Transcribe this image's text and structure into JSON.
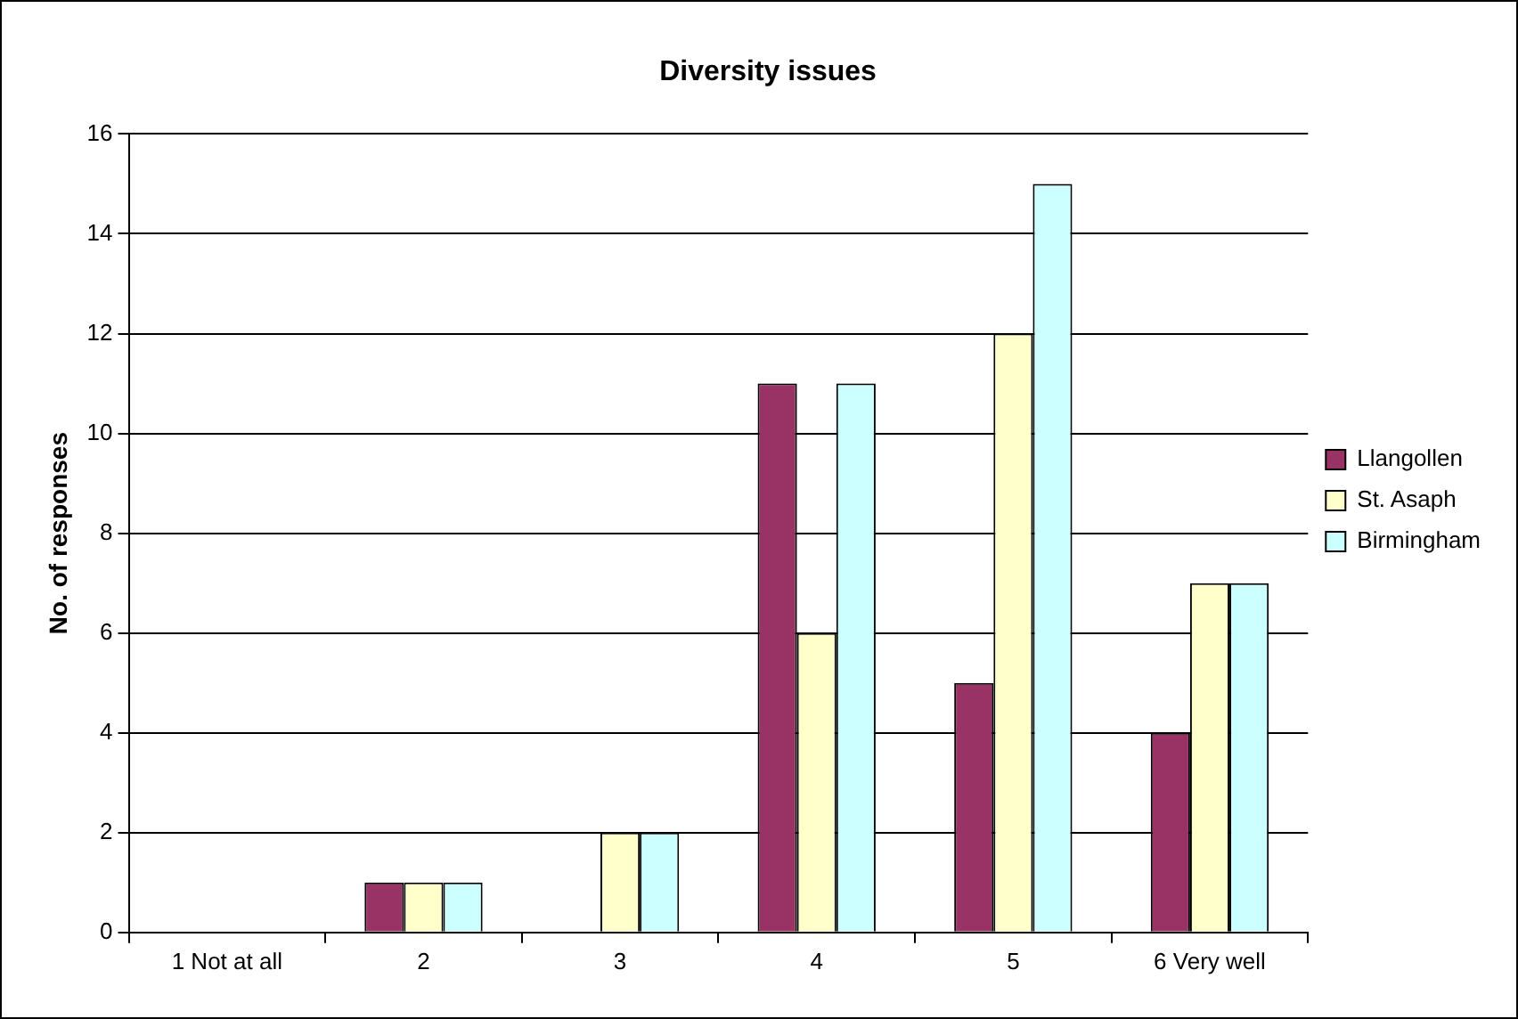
{
  "chart_data": {
    "type": "bar",
    "title": "Diversity issues",
    "ylabel": "No. of responses",
    "categories": [
      "1 Not at all",
      "2",
      "3",
      "4",
      "5",
      "6 Very well"
    ],
    "series": [
      {
        "name": "Llangollen",
        "color": "#993366",
        "values": [
          0,
          1,
          0,
          11,
          5,
          4
        ]
      },
      {
        "name": "St. Asaph",
        "color": "#ffffcc",
        "values": [
          0,
          1,
          2,
          6,
          12,
          7
        ]
      },
      {
        "name": "Birmingham",
        "color": "#ccffff",
        "values": [
          0,
          1,
          2,
          11,
          15,
          7
        ]
      }
    ],
    "ylim": [
      0,
      16
    ],
    "yticks": [
      0,
      2,
      4,
      6,
      8,
      10,
      12,
      14,
      16
    ],
    "grid": "y",
    "legend": "right"
  }
}
